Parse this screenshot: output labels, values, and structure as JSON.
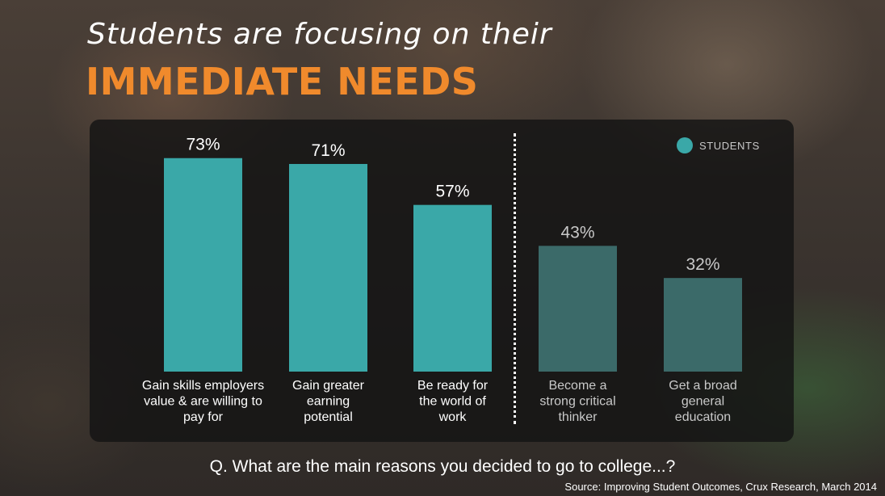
{
  "header": {
    "line1": "Students are focusing on their",
    "line2": "IMMEDIATE NEEDS"
  },
  "legend": {
    "label": "STUDENTS",
    "color": "#3aa8a8"
  },
  "question": "Q. What are the main reasons you decided to go to college...?",
  "source": "Source: Improving Student Outcomes, Crux Research, March 2014",
  "chart_data": {
    "type": "bar",
    "title": "",
    "xlabel": "",
    "ylabel": "",
    "ylim": [
      0,
      100
    ],
    "grid": false,
    "legend_position": "top-right",
    "categories": [
      [
        "Gain skills employers",
        "value & are willing to",
        "pay for"
      ],
      [
        "Gain greater",
        "earning",
        "potential"
      ],
      [
        "Be ready for",
        "the world of",
        "work"
      ],
      [
        "Become a",
        "strong critical",
        "thinker"
      ],
      [
        "Get a broad",
        "general",
        "education"
      ]
    ],
    "series": [
      {
        "name": "STUDENTS",
        "values": [
          73,
          71,
          57,
          43,
          32
        ]
      }
    ],
    "data_labels": [
      "73%",
      "71%",
      "57%",
      "43%",
      "32%"
    ],
    "bar_colors": [
      "#3aa8a8",
      "#3aa8a8",
      "#3aa8a8",
      "#3b6a69",
      "#3b6a69"
    ],
    "label_colors": [
      "#ffffff",
      "#ffffff",
      "#ffffff",
      "#c9c9c9",
      "#c9c9c9"
    ]
  }
}
